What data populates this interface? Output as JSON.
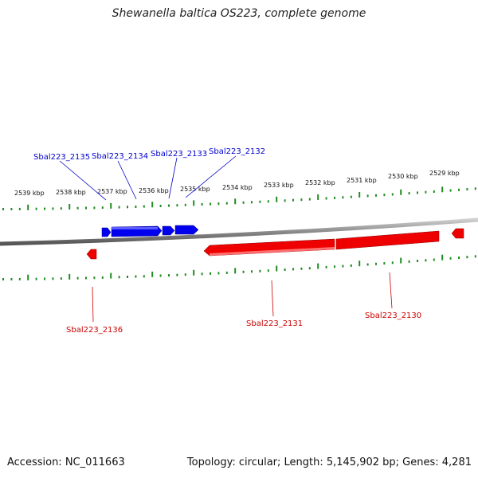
{
  "title": "Shewanella baltica OS223, complete genome",
  "footer": {
    "accession": "Accession: NC_011663",
    "stats": "Topology: circular; Length: 5,145,902 bp; Genes: 4,281"
  },
  "ruler_labels": [
    "2539 kbp",
    "2538 kbp",
    "2537 kbp",
    "2536 kbp",
    "2535 kbp",
    "2534 kbp",
    "2533 kbp",
    "2532 kbp",
    "2531 kbp",
    "2530 kbp",
    "2529 kbp"
  ],
  "forward_genes": [
    {
      "id": "Sbal223_2135",
      "label": "Sbal223_2135"
    },
    {
      "id": "Sbal223_2134",
      "label": "Sbal223_2134"
    },
    {
      "id": "Sbal223_2133",
      "label": "Sbal223_2133"
    },
    {
      "id": "Sbal223_2132",
      "label": "Sbal223_2132"
    }
  ],
  "reverse_genes": [
    {
      "id": "Sbal223_2136",
      "label": "Sbal223_2136"
    },
    {
      "id": "Sbal223_2131",
      "label": "Sbal223_2131"
    },
    {
      "id": "Sbal223_2130",
      "label": "Sbal223_2130"
    }
  ],
  "colors": {
    "forward_strand": "#0000ee",
    "reverse_strand": "#ee0000",
    "ticks": "#228b22",
    "backbone": "#888888"
  }
}
